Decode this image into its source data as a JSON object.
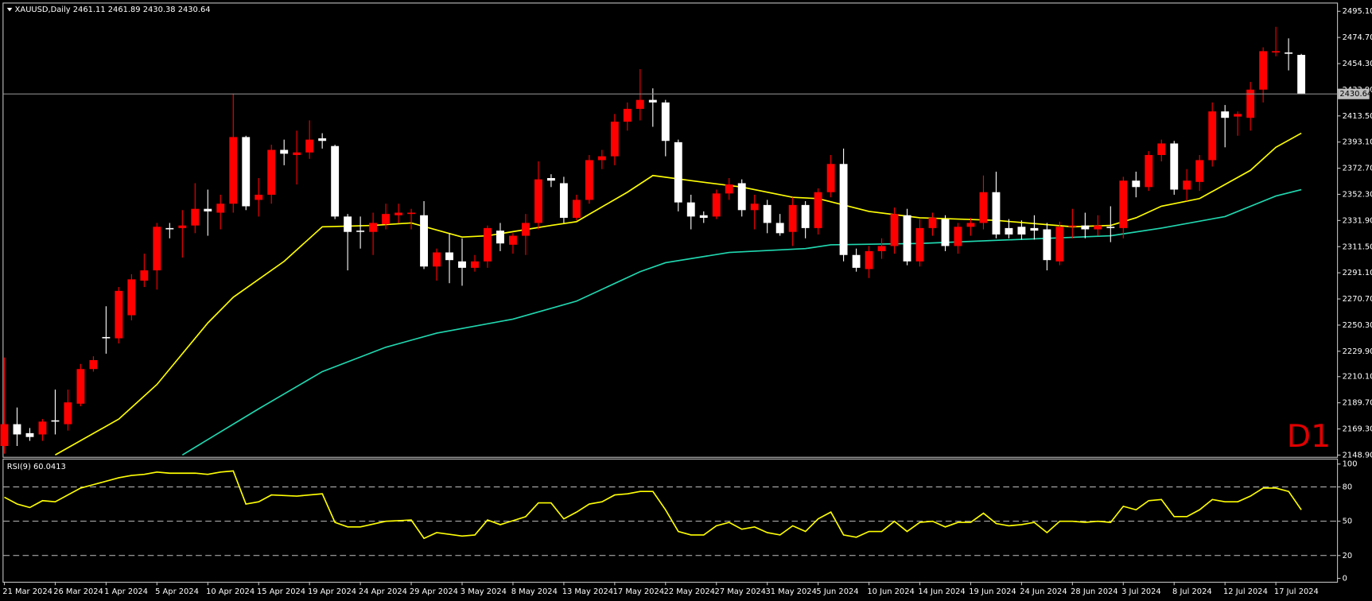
{
  "chart_data": [
    {
      "type": "candlestick",
      "title": "XAUUSD,Daily  2461.11 2461.89 2430.38 2430.64",
      "annotation": "D1",
      "up_color": "#ff0000",
      "down_color": "#ffffff",
      "categories": [
        "21 Mar 2024",
        null,
        null,
        null,
        "26 Mar 2024",
        null,
        null,
        null,
        "1 Apr 2024",
        null,
        null,
        null,
        "5 Apr 2024",
        null,
        null,
        null,
        "10 Apr 2024",
        null,
        null,
        null,
        "15 Apr 2024",
        null,
        null,
        null,
        "19 Apr 2024",
        null,
        null,
        null,
        "24 Apr 2024",
        null,
        null,
        null,
        "29 Apr 2024",
        null,
        null,
        null,
        "3 May 2024",
        null,
        null,
        null,
        "8 May 2024",
        null,
        null,
        null,
        "13 May 2024",
        null,
        null,
        null,
        "17 May 2024",
        null,
        null,
        null,
        "22 May 2024",
        null,
        null,
        null,
        "27 May 2024",
        null,
        null,
        null,
        "31 May 2024",
        null,
        null,
        null,
        "5 Jun 2024",
        null,
        null,
        null,
        "10 Jun 2024",
        null,
        null,
        null,
        "14 Jun 2024",
        null,
        null,
        null,
        "19 Jun 2024",
        null,
        null,
        null,
        "24 Jun 2024",
        null,
        null,
        null,
        "28 Jun 2024",
        null,
        null,
        null,
        "3 Jul 2024",
        null,
        null,
        null,
        "8 Jul 2024",
        null,
        null,
        null,
        "12 Jul 2024",
        null,
        null,
        null,
        "17 Jul 2024",
        null,
        null
      ],
      "open": [
        2156,
        2173,
        2166,
        2165,
        2176,
        2173,
        2189,
        2216,
        2241,
        2240,
        2258,
        2285,
        2293,
        2326,
        2326,
        2328,
        2341,
        2338,
        2345,
        2397,
        2348,
        2352,
        2387,
        2383,
        2385,
        2396,
        2390,
        2335,
        2324,
        2323,
        2329,
        2336,
        2337,
        2336,
        2296,
        2307,
        2300,
        2295,
        2300,
        2324,
        2313,
        2320,
        2330,
        2365,
        2361,
        2334,
        2348,
        2379,
        2382,
        2409,
        2419,
        2426,
        2424,
        2393,
        2346,
        2336,
        2335,
        2353,
        2361,
        2340,
        2344,
        2330,
        2323,
        2344,
        2326,
        2354,
        2376,
        2305,
        2294,
        2308,
        2312,
        2336,
        2300,
        2326,
        2333,
        2312,
        2327,
        2330,
        2354,
        2326,
        2327,
        2326,
        2325,
        2300,
        2327,
        2328,
        2325,
        2327,
        2326,
        2363,
        2358,
        2383,
        2392,
        2356,
        2362,
        2379,
        2417,
        2413,
        2412,
        2434,
        2463,
        2463,
        2461.11
      ],
      "high": [
        2225,
        2186,
        2170,
        2177,
        2200,
        2200,
        2220,
        2226,
        2265,
        2280,
        2290,
        2306,
        2330,
        2330,
        2340,
        2361,
        2356,
        2352,
        2431,
        2398,
        2365,
        2391,
        2395,
        2402,
        2410,
        2400,
        2391,
        2337,
        2335,
        2338,
        2345,
        2345,
        2341,
        2347,
        2310,
        2322,
        2318,
        2305,
        2328,
        2330,
        2322,
        2337,
        2378,
        2368,
        2366,
        2352,
        2383,
        2387,
        2415,
        2424,
        2450,
        2435,
        2426,
        2395,
        2352,
        2339,
        2356,
        2365,
        2364,
        2352,
        2348,
        2337,
        2350,
        2347,
        2357,
        2383,
        2388,
        2310,
        2312,
        2318,
        2342,
        2341,
        2333,
        2338,
        2336,
        2330,
        2334,
        2367,
        2370,
        2333,
        2332,
        2336,
        2330,
        2331,
        2341,
        2338,
        2336,
        2343,
        2366,
        2370,
        2386,
        2395,
        2394,
        2372,
        2383,
        2424,
        2422,
        2417,
        2440,
        2467,
        2483,
        2474,
        2461.89
      ],
      "low": [
        2150,
        2156,
        2160,
        2160,
        2165,
        2168,
        2187,
        2214,
        2228,
        2236,
        2254,
        2280,
        2278,
        2318,
        2303,
        2322,
        2320,
        2325,
        2338,
        2340,
        2335,
        2345,
        2375,
        2360,
        2380,
        2388,
        2333,
        2293,
        2310,
        2305,
        2325,
        2330,
        2325,
        2294,
        2285,
        2283,
        2281,
        2292,
        2295,
        2308,
        2306,
        2305,
        2325,
        2358,
        2330,
        2332,
        2345,
        2372,
        2375,
        2402,
        2410,
        2405,
        2382,
        2339,
        2325,
        2330,
        2333,
        2348,
        2335,
        2325,
        2322,
        2320,
        2312,
        2318,
        2321,
        2350,
        2300,
        2292,
        2287,
        2302,
        2306,
        2297,
        2296,
        2320,
        2308,
        2306,
        2320,
        2325,
        2318,
        2318,
        2317,
        2317,
        2293,
        2297,
        2318,
        2318,
        2320,
        2315,
        2318,
        2350,
        2355,
        2378,
        2352,
        2347,
        2355,
        2374,
        2389,
        2398,
        2402,
        2424,
        2460,
        2449,
        2430.38
      ],
      "close": [
        2173,
        2165,
        2163,
        2175,
        2175,
        2190,
        2216,
        2223,
        2240,
        2277,
        2286,
        2293,
        2327,
        2325,
        2328,
        2341,
        2339,
        2345,
        2397,
        2343,
        2352,
        2387,
        2384,
        2385,
        2395,
        2394,
        2335,
        2323,
        2323,
        2330,
        2337,
        2338,
        2338,
        2296,
        2307,
        2301,
        2295,
        2300,
        2326,
        2314,
        2320,
        2330,
        2364,
        2363,
        2334,
        2348,
        2379,
        2382,
        2409,
        2419,
        2426,
        2424,
        2394,
        2346,
        2335,
        2334,
        2353,
        2360,
        2340,
        2345,
        2330,
        2322,
        2344,
        2326,
        2354,
        2376,
        2305,
        2295,
        2308,
        2312,
        2337,
        2300,
        2326,
        2334,
        2312,
        2327,
        2330,
        2354,
        2321,
        2321,
        2321,
        2324,
        2301,
        2327,
        2328,
        2325,
        2328,
        2326,
        2363,
        2358,
        2383,
        2392,
        2356,
        2363,
        2379,
        2417,
        2412,
        2415,
        2434,
        2464,
        2464,
        2462,
        2430.64
      ],
      "lines": [
        {
          "color": "#ffff00",
          "x": [
            4,
            9,
            12,
            16,
            18,
            22,
            25,
            29,
            32,
            36,
            38,
            43,
            45,
            49,
            51,
            54,
            58,
            62,
            64,
            68,
            72,
            78,
            84,
            87,
            89,
            91,
            94,
            98,
            100,
            102
          ],
          "values": [
            2149,
            2177,
            2204,
            2252,
            2272,
            2300,
            2327,
            2328,
            2330,
            2319,
            2320,
            2328,
            2331,
            2354,
            2367,
            2363,
            2358,
            2350,
            2349,
            2339,
            2334,
            2332,
            2327,
            2328,
            2334,
            2343,
            2349,
            2371,
            2389,
            2400
          ]
        },
        {
          "color": "#20d8b0",
          "x": [
            14,
            20,
            25,
            30,
            34,
            40,
            45,
            50,
            52,
            57,
            63,
            65,
            72,
            82,
            87,
            91,
            96,
            100,
            102
          ],
          "values": [
            2149,
            2185,
            2214,
            2233,
            2244,
            2255,
            2269,
            2292,
            2299,
            2307,
            2310,
            2313,
            2314,
            2318,
            2320,
            2326,
            2335,
            2351,
            2356
          ]
        }
      ],
      "last_price": 2430.64,
      "ylim": [
        2147.5,
        2501.2
      ],
      "yticks": [
        {
          "value": 2495.1,
          "label": "2495.10"
        },
        {
          "value": 2474.7,
          "label": "2474.70"
        },
        {
          "value": 2454.3,
          "label": "2454.30"
        },
        {
          "value": 2433.9,
          "label": "2433.90"
        },
        {
          "value": 2413.5,
          "label": "2413.50"
        },
        {
          "value": 2393.1,
          "label": "2393.10"
        },
        {
          "value": 2372.7,
          "label": "2372.70"
        },
        {
          "value": 2352.3,
          "label": "2352.30"
        },
        {
          "value": 2331.9,
          "label": "2331.90"
        },
        {
          "value": 2311.5,
          "label": "2311.50"
        },
        {
          "value": 2291.1,
          "label": "2291.10"
        },
        {
          "value": 2270.7,
          "label": "2270.70"
        },
        {
          "value": 2250.3,
          "label": "2250.30"
        },
        {
          "value": 2229.9,
          "label": "2229.90"
        },
        {
          "value": 2210.1,
          "label": "2210.10"
        },
        {
          "value": 2189.7,
          "label": "2189.70"
        },
        {
          "value": 2169.3,
          "label": "2169.30"
        },
        {
          "value": 2148.9,
          "label": "2148.90"
        }
      ]
    },
    {
      "type": "line",
      "title": "RSI(9) 60.0413",
      "color": "#ffff00",
      "x": [
        0,
        1,
        2,
        3,
        4,
        6,
        7,
        9,
        10,
        11,
        12,
        13,
        14,
        15,
        16,
        17,
        18,
        19,
        20,
        21,
        23,
        25,
        26,
        27,
        28,
        30,
        32,
        33,
        34,
        36,
        37,
        38,
        39,
        41,
        42,
        43,
        44,
        45,
        46,
        47,
        48,
        49,
        50,
        51,
        52,
        53,
        54,
        55,
        56,
        57,
        58,
        59,
        60,
        61,
        62,
        63,
        64,
        65,
        66,
        67,
        68,
        69,
        70,
        71,
        72,
        73,
        74,
        75,
        76,
        77,
        78,
        79,
        80,
        81,
        82,
        83,
        84,
        85,
        86,
        87,
        88,
        89,
        90,
        91,
        92,
        93,
        94,
        95,
        96,
        97,
        98,
        99,
        100,
        101,
        102
      ],
      "values": [
        71,
        65,
        62,
        68,
        67,
        79,
        82,
        88,
        90,
        91,
        93,
        92,
        92,
        92,
        91,
        93,
        94,
        65,
        67,
        73,
        72,
        74,
        49,
        45,
        45,
        50,
        51,
        35,
        40,
        37,
        38,
        51,
        47,
        54,
        66,
        66,
        52,
        58,
        65,
        67,
        73,
        74,
        76,
        76,
        60,
        41,
        38,
        38,
        46,
        49,
        43,
        45,
        40,
        38,
        46,
        41,
        52,
        58,
        38,
        36,
        41,
        41,
        50,
        41,
        49,
        50,
        45,
        49,
        49,
        57,
        48,
        46,
        47,
        49,
        40,
        50,
        50,
        49,
        50,
        49,
        63,
        60,
        68,
        69,
        54,
        54,
        60,
        69,
        67,
        67,
        72,
        79,
        79,
        76,
        60
      ],
      "levels": [
        20,
        50,
        80
      ],
      "ylim": [
        -3,
        104
      ],
      "yticks": [
        0,
        20,
        50,
        80,
        100
      ]
    }
  ]
}
